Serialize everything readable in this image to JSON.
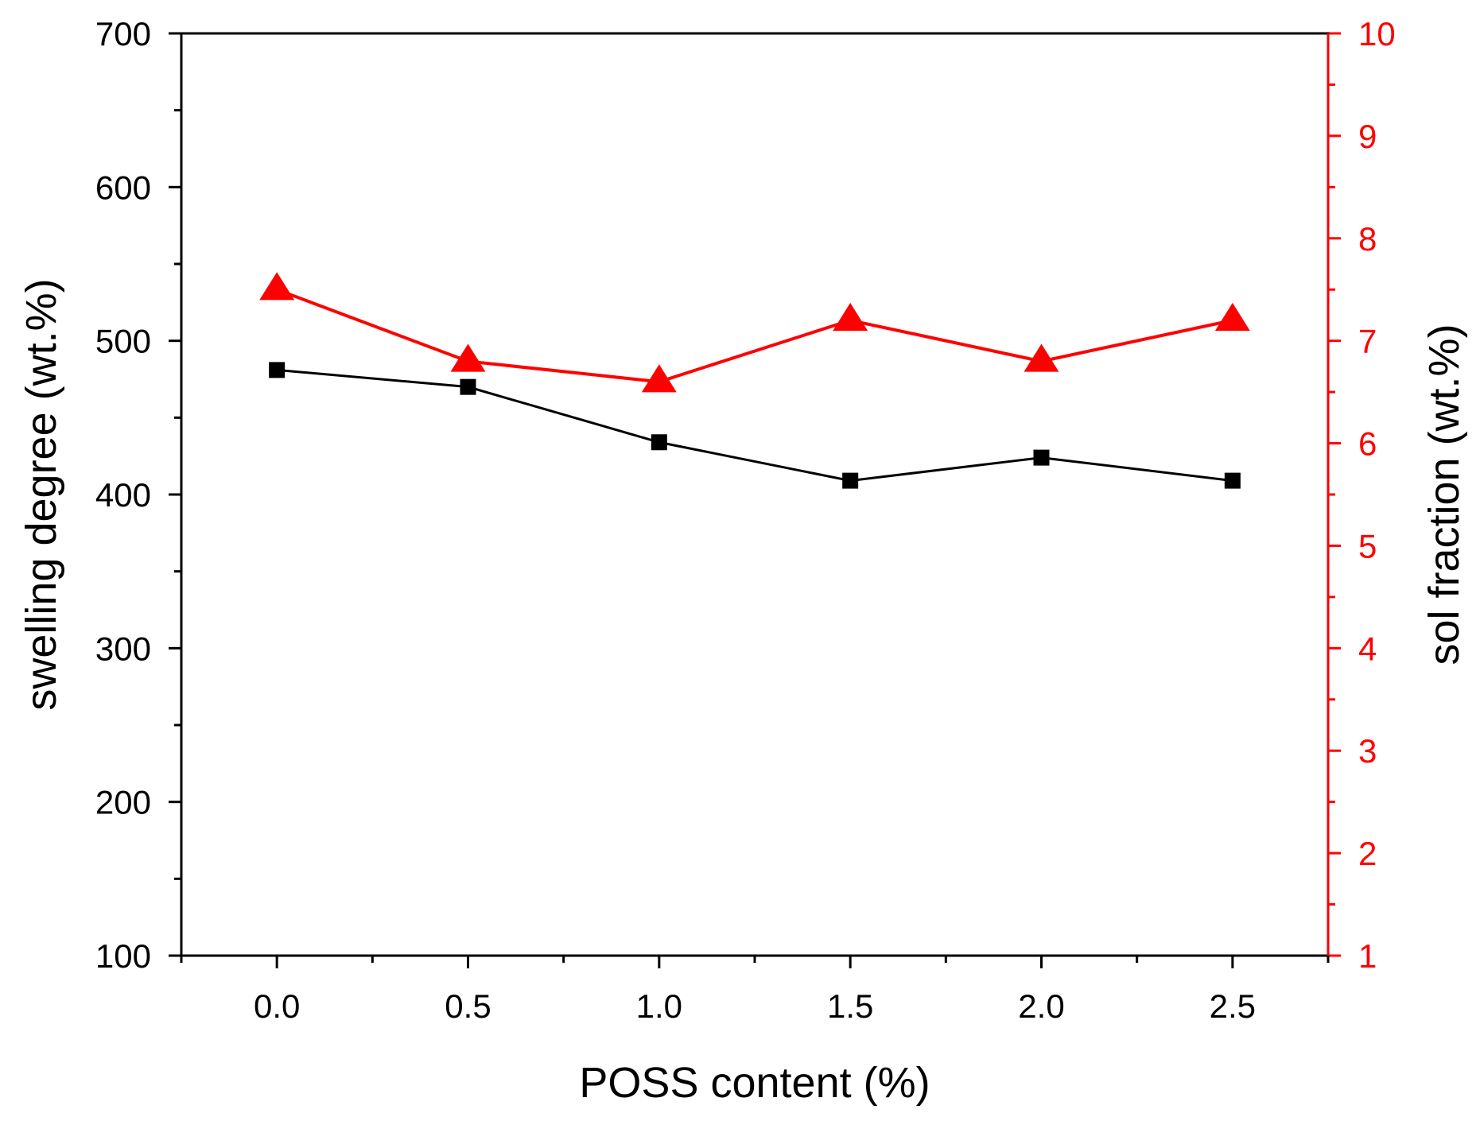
{
  "chart_data": {
    "type": "line",
    "xlabel": "POSS content (%)",
    "ylabel": "swelling degree (wt.%)",
    "y2label": "sol fraction (wt.%)",
    "xlim": [
      -0.25,
      2.75
    ],
    "ylim": [
      100,
      700
    ],
    "y2lim": [
      1,
      10
    ],
    "xticks": [
      "0.0",
      "0.5",
      "1.0",
      "1.5",
      "2.0",
      "2.5"
    ],
    "yticks": [
      "100",
      "200",
      "300",
      "400",
      "500",
      "600",
      "700"
    ],
    "y2ticks": [
      "1",
      "2",
      "3",
      "4",
      "5",
      "6",
      "7",
      "8",
      "9",
      "10"
    ],
    "grid": false,
    "series": [
      {
        "name": "swelling degree",
        "axis": "left",
        "marker": "square",
        "color": "#000000",
        "x": [
          0.0,
          0.5,
          1.0,
          1.5,
          2.0,
          2.5
        ],
        "values": [
          481,
          470,
          434,
          409,
          424,
          409
        ]
      },
      {
        "name": "sol fraction",
        "axis": "right",
        "marker": "triangle",
        "color": "#ff0000",
        "x": [
          0.0,
          0.5,
          1.0,
          1.5,
          2.0,
          2.5
        ],
        "values": [
          7.5,
          6.8,
          6.6,
          7.2,
          6.8,
          7.2
        ]
      }
    ]
  }
}
